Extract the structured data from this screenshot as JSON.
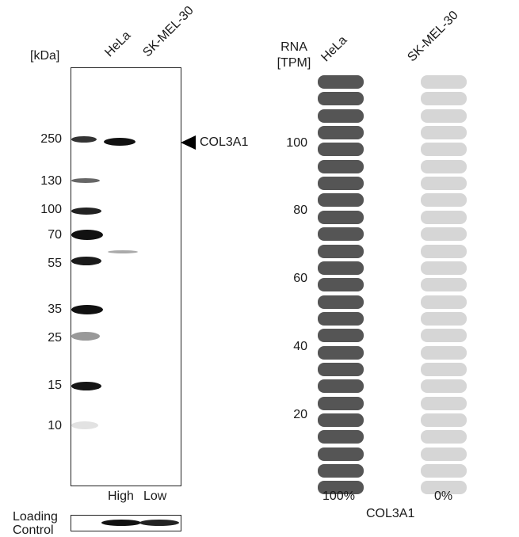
{
  "blot": {
    "unit_label": "[kDa]",
    "lanes": [
      "HeLa",
      "SK-MEL-30"
    ],
    "markers": [
      "250",
      "130",
      "100",
      "70",
      "55",
      "35",
      "25",
      "15",
      "10"
    ],
    "target_label": "COL3A1",
    "lane_levels": [
      "High",
      "Low"
    ],
    "loading_label": [
      "Loading",
      "Control"
    ]
  },
  "rna": {
    "header": [
      "RNA",
      "[TPM]"
    ],
    "lanes": [
      "HeLa",
      "SK-MEL-30"
    ],
    "axis_ticks": [
      "100",
      "80",
      "60",
      "40",
      "20"
    ],
    "percentages": [
      "100%",
      "0%"
    ],
    "gene_label": "COL3A1",
    "pill_count": 25,
    "fill_fraction": [
      1.0,
      0.0
    ],
    "colors": {
      "filled": "#555555",
      "empty": "#d6d6d6"
    }
  }
}
